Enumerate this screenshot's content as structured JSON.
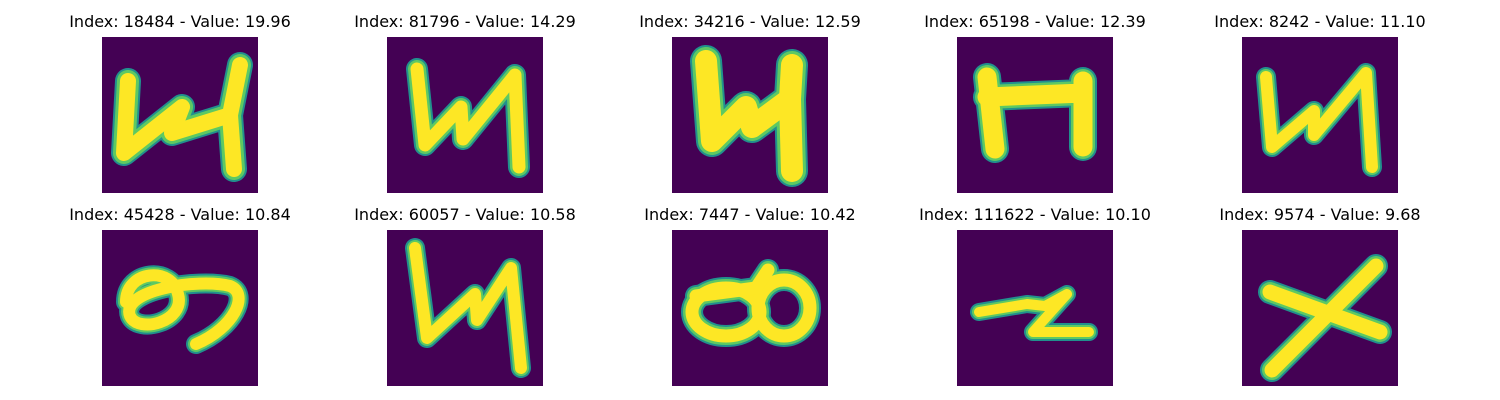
{
  "grid": {
    "panels": [
      {
        "title": "Index: 18484 - Value: 19.96",
        "glyph": "N-shape"
      },
      {
        "title": "Index: 81796 - Value: 14.29",
        "glyph": "N-shape"
      },
      {
        "title": "Index: 34216 - Value: 12.59",
        "glyph": "N-shape"
      },
      {
        "title": "Index: 65198 - Value: 12.39",
        "glyph": "H-shape"
      },
      {
        "title": "Index: 8242 - Value: 11.10",
        "glyph": "N-shape"
      },
      {
        "title": "Index: 45428 - Value: 10.84",
        "glyph": "loop-shape"
      },
      {
        "title": "Index: 60057 - Value: 10.58",
        "glyph": "N-shape"
      },
      {
        "title": "Index: 7447 - Value: 10.42",
        "glyph": "double-loop-shape"
      },
      {
        "title": "Index: 111622 - Value: 10.10",
        "glyph": "z-shape"
      },
      {
        "title": "Index: 9574 - Value: 9.68",
        "glyph": "x-shape"
      }
    ]
  },
  "colors": {
    "background": "#440154",
    "edge": "#21908d",
    "mid": "#5ec962",
    "core": "#fde725"
  }
}
